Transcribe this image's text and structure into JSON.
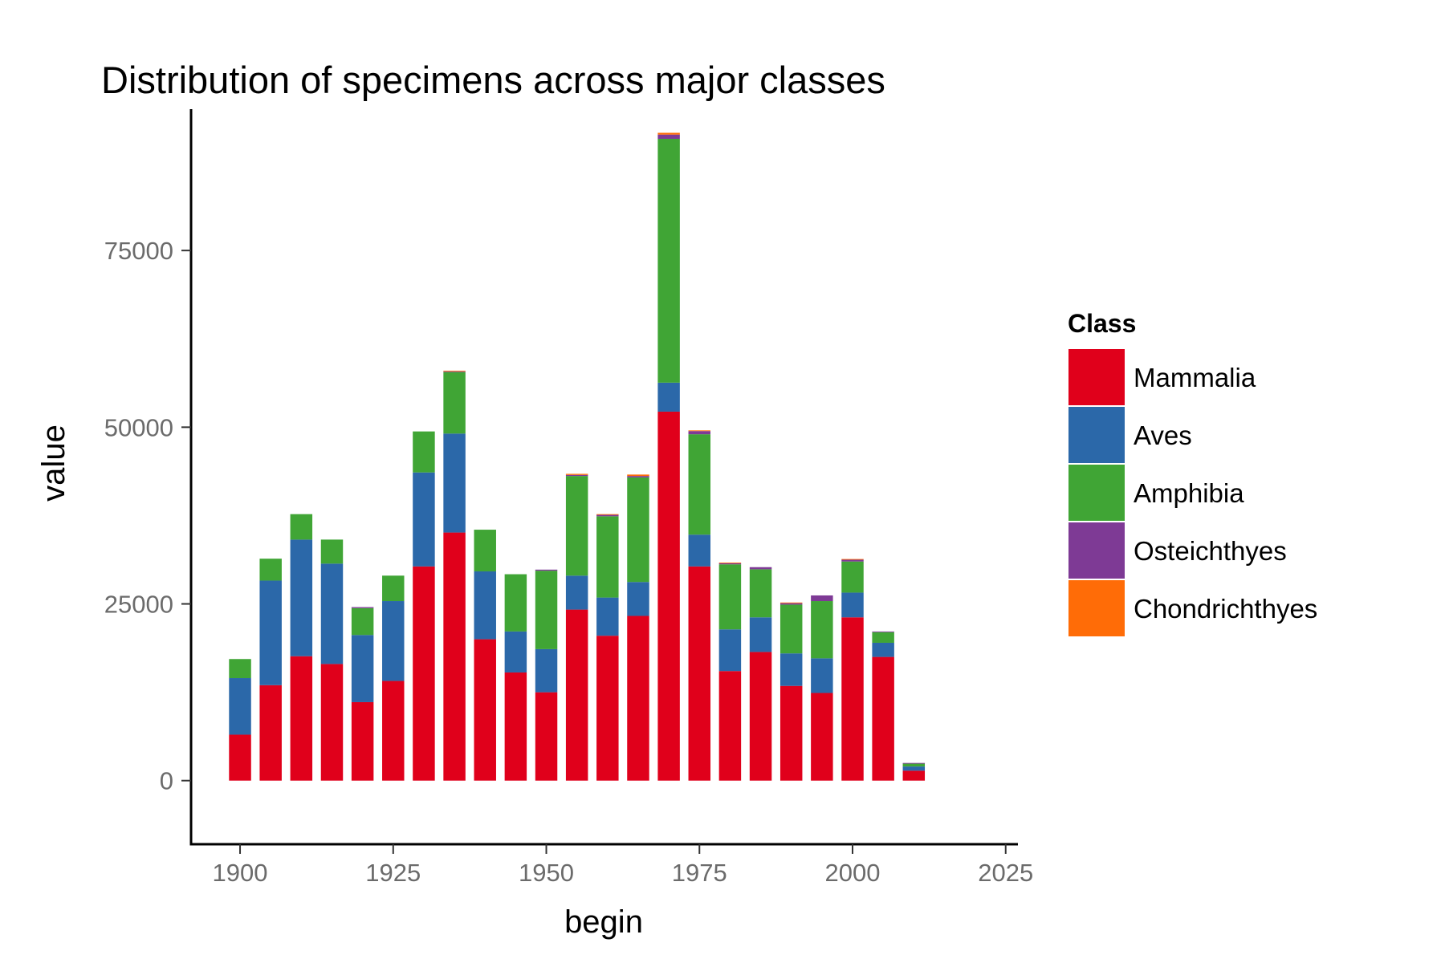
{
  "chart_data": {
    "type": "bar",
    "stacked": true,
    "title": "Distribution of specimens across major classes",
    "xlabel": "begin",
    "ylabel": "value",
    "xlim": [
      1892,
      2027
    ],
    "ylim": [
      -9000,
      95000
    ],
    "xticks": [
      1900,
      1925,
      1950,
      1975,
      2000,
      2025
    ],
    "yticks": [
      0,
      25000,
      50000,
      75000
    ],
    "bar_width_years": 3.6,
    "grid": false,
    "legend": {
      "title": "Class",
      "placement": "right"
    },
    "x": [
      1900,
      1905,
      1910,
      1915,
      1920,
      1925,
      1930,
      1935,
      1940,
      1945,
      1950,
      1955,
      1960,
      1965,
      1970,
      1975,
      1980,
      1985,
      1990,
      1995,
      2000,
      2005,
      2010
    ],
    "series": [
      {
        "name": "Mammalia",
        "color": "#E0001B",
        "values": [
          6500,
          13500,
          17600,
          16500,
          11100,
          14100,
          30300,
          35100,
          20000,
          15300,
          12500,
          24200,
          20500,
          23300,
          52200,
          30300,
          15500,
          18200,
          13400,
          12400,
          23100,
          17500,
          1400
        ]
      },
      {
        "name": "Aves",
        "color": "#2B68A9",
        "values": [
          8000,
          14800,
          16500,
          14200,
          9500,
          11300,
          13300,
          14000,
          9600,
          5800,
          6100,
          4800,
          5400,
          4800,
          4100,
          4500,
          5900,
          4900,
          4600,
          4900,
          3500,
          2000,
          600
        ]
      },
      {
        "name": "Amphibia",
        "color": "#40A535",
        "values": [
          2700,
          3100,
          3600,
          3400,
          3800,
          3600,
          5800,
          8700,
          5900,
          8100,
          11100,
          14100,
          11500,
          14800,
          34500,
          14200,
          9200,
          6800,
          6900,
          8100,
          4400,
          1500,
          400
        ]
      },
      {
        "name": "Osteichthyes",
        "color": "#7E3A95",
        "values": [
          0,
          0,
          0,
          0,
          150,
          0,
          0,
          100,
          0,
          0,
          150,
          150,
          200,
          200,
          600,
          450,
          150,
          300,
          200,
          800,
          250,
          100,
          100
        ]
      },
      {
        "name": "Chondrichthyes",
        "color": "#FF6C07",
        "values": [
          0,
          0,
          0,
          0,
          0,
          0,
          0,
          100,
          0,
          0,
          0,
          150,
          100,
          200,
          250,
          100,
          100,
          0,
          100,
          0,
          100,
          0,
          0
        ]
      }
    ]
  },
  "colors": {
    "axis": "#000000",
    "tick_label": "#6b6b6b",
    "text": "#000000",
    "background": "#ffffff"
  }
}
